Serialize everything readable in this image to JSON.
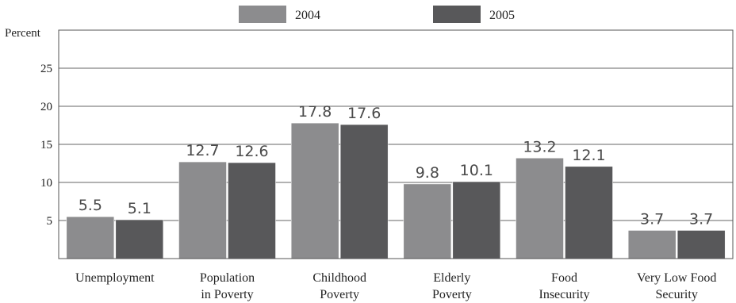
{
  "chart_data": {
    "type": "bar",
    "ylabel": "Percent",
    "ylim": [
      0,
      30
    ],
    "yticks": [
      5,
      10,
      15,
      20,
      25
    ],
    "grid": true,
    "legend_position": "top",
    "categories": [
      [
        "Unemployment"
      ],
      [
        "Population",
        "in Poverty"
      ],
      [
        "Childhood",
        "Poverty"
      ],
      [
        "Elderly",
        "Poverty"
      ],
      [
        "Food",
        "Insecurity"
      ],
      [
        "Very Low Food",
        "Security"
      ]
    ],
    "series": [
      {
        "name": "2004",
        "color": "#8c8c8e",
        "values": [
          5.5,
          12.7,
          17.8,
          9.8,
          13.2,
          3.7
        ]
      },
      {
        "name": "2005",
        "color": "#58585a",
        "values": [
          5.1,
          12.6,
          17.6,
          10.1,
          12.1,
          3.7
        ]
      }
    ]
  }
}
